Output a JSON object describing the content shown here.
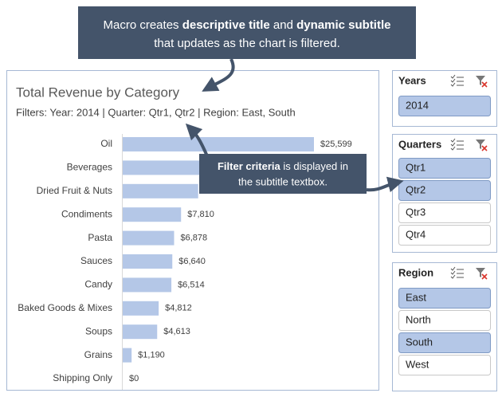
{
  "chart_data": {
    "type": "barh",
    "title": "Total Revenue by Category",
    "subtitle": "Filters: Year: 2014 | Quarter: Qtr1, Qtr2 | Region: East, South",
    "categories": [
      "Oil",
      "Beverages",
      "Dried Fruit & Nuts",
      "Condiments",
      "Pasta",
      "Sauces",
      "Candy",
      "Baked Goods & Mixes",
      "Soups",
      "Grains",
      "Shipping Only"
    ],
    "values": [
      25599,
      14000,
      10100,
      7810,
      6878,
      6640,
      6514,
      4812,
      4613,
      1190,
      0
    ],
    "value_labels": [
      "$25,599",
      null,
      null,
      "$7,810",
      "$6,878",
      "$6,640",
      "$6,514",
      "$4,812",
      "$4,613",
      "$1,190",
      "$0"
    ],
    "color": "#b4c7e7"
  },
  "top_callout": {
    "line1": [
      "Macro creates ",
      "descriptive title",
      " and ",
      "dynamic subtitle"
    ],
    "line2": "that updates as the chart is filtered."
  },
  "middle_callout": {
    "line1": [
      "Filter criteria",
      " is displayed in"
    ],
    "line2": "the subtitle textbox."
  },
  "slicers": [
    {
      "title": "Years",
      "items": [
        {
          "label": "2014",
          "selected": true
        }
      ]
    },
    {
      "title": "Quarters",
      "items": [
        {
          "label": "Qtr1",
          "selected": true
        },
        {
          "label": "Qtr2",
          "selected": true
        },
        {
          "label": "Qtr3",
          "selected": false
        },
        {
          "label": "Qtr4",
          "selected": false
        }
      ]
    },
    {
      "title": "Region",
      "items": [
        {
          "label": "East",
          "selected": true
        },
        {
          "label": "North",
          "selected": false
        },
        {
          "label": "South",
          "selected": true
        },
        {
          "label": "West",
          "selected": false
        }
      ]
    }
  ]
}
